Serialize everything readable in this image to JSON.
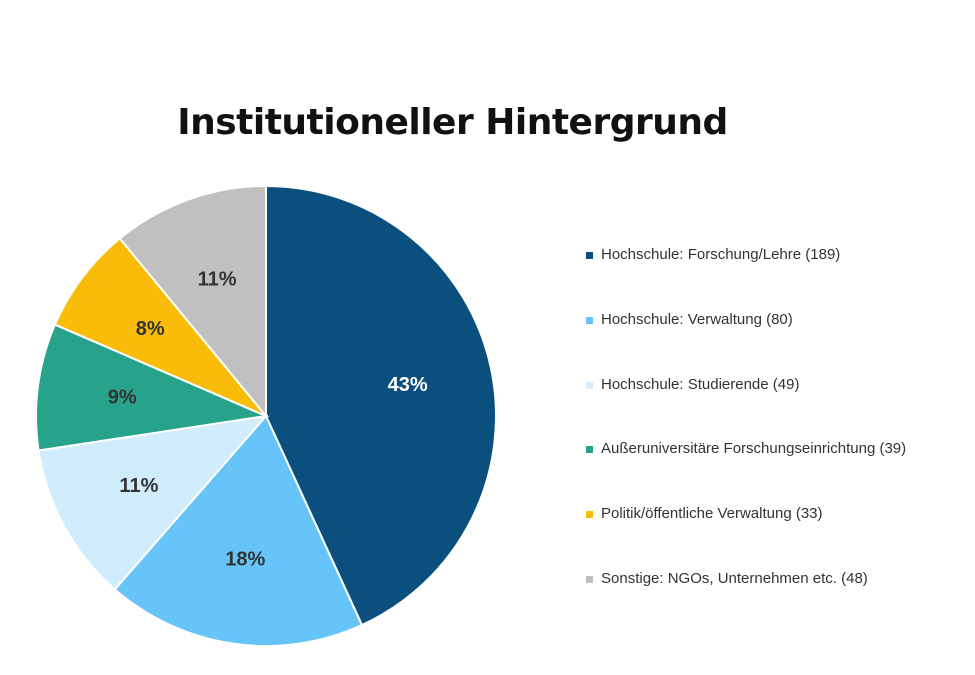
{
  "chart_data": {
    "type": "pie",
    "title": "Institutioneller Hintergrund",
    "slices": [
      {
        "label": "Hochschule: Forschung/Lehre (189)",
        "value": 189,
        "percent_label": "43%",
        "color": "#0b4f7f",
        "text_color": "#ffffff"
      },
      {
        "label": "Hochschule: Verwaltung (80)",
        "value": 80,
        "percent_label": "18%",
        "color": "#66c4f8",
        "text_color": "#333333"
      },
      {
        "label": "Hochschule: Studierende (49)",
        "value": 49,
        "percent_label": "11%",
        "color": "#d0ecfd",
        "text_color": "#333333"
      },
      {
        "label": "Außeruniversitäre Forschungseinrichtung (39)",
        "value": 39,
        "percent_label": "9%",
        "color": "#26a38a",
        "text_color": "#333333"
      },
      {
        "label": "Politik/öffentliche Verwaltung (33)",
        "value": 33,
        "percent_label": "8%",
        "color": "#f8bc09",
        "text_color": "#333333"
      },
      {
        "label": "Sonstige: NGOs, Unternehmen etc. (48)",
        "value": 48,
        "percent_label": "11%",
        "color": "#c0c0c0",
        "text_color": "#333333"
      }
    ],
    "legend_placement": "right"
  }
}
